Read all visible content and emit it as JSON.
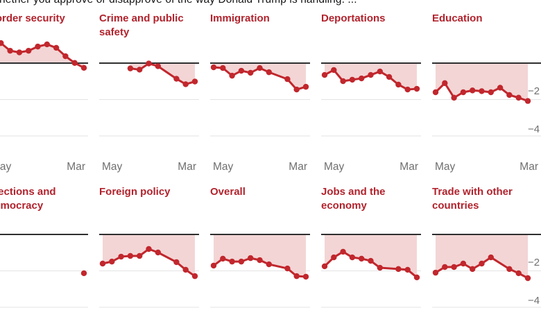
{
  "header": {
    "question_text": "hether you approve or disapprove of the way Donald Trump is handling. ..."
  },
  "colors": {
    "line_red": "#c1272d",
    "fill_pink": "#f3d5d5",
    "title_red": "#b1232d",
    "baseline_dark": "#2f2f2f",
    "gridline_gray": "#e3e3e3",
    "tick_text_gray": "#6f6f6f"
  },
  "chart_data": {
    "type": "line",
    "layout": "small-multiples-2x5",
    "question": "hether you approve or disapprove of the way Donald Trump is handling. ...",
    "x_tick_labels": [
      "May",
      "Mar"
    ],
    "y_tick_labels": [
      "−2",
      "−4"
    ],
    "y_gridline_values": [
      -20,
      -40
    ],
    "baseline_value": 0,
    "y_axis_note": "net approval, 0 baseline with -20 and -40 gridlines",
    "charts": [
      {
        "id": "border-security",
        "title": "Border security",
        "row": 0,
        "col": 0,
        "points": [
          [
            0,
            13
          ],
          [
            1,
            11
          ],
          [
            2,
            6.8
          ],
          [
            3,
            5.9
          ],
          [
            4,
            6.8
          ],
          [
            5,
            9.1
          ],
          [
            6,
            10.3
          ],
          [
            7,
            8.4
          ],
          [
            8,
            3.8
          ],
          [
            9,
            0.1
          ],
          [
            10,
            -2.6
          ]
        ]
      },
      {
        "id": "crime-and-public-safety",
        "title": "Crime and public safety",
        "row": 0,
        "col": 1,
        "points": [
          [
            3,
            -2.9
          ],
          [
            4,
            -3.6
          ],
          [
            5,
            -0.2
          ],
          [
            6,
            -1.7
          ],
          [
            8,
            -8.6
          ],
          [
            9,
            -11.6
          ],
          [
            10,
            -10.1
          ]
        ]
      },
      {
        "id": "immigration",
        "title": "Immigration",
        "row": 0,
        "col": 2,
        "points": [
          [
            0,
            -2.3
          ],
          [
            1,
            -2.7
          ],
          [
            2,
            -6.9
          ],
          [
            3,
            -4.2
          ],
          [
            4,
            -5.3
          ],
          [
            5,
            -2.7
          ],
          [
            6,
            -5
          ],
          [
            8,
            -8.8
          ],
          [
            9,
            -14.5
          ],
          [
            10,
            -13
          ]
        ]
      },
      {
        "id": "deportations",
        "title": "Deportations",
        "row": 0,
        "col": 3,
        "points": [
          [
            0,
            -6.5
          ],
          [
            1,
            -3.8
          ],
          [
            2,
            -9.9
          ],
          [
            3,
            -9.1
          ],
          [
            4,
            -8.4
          ],
          [
            5,
            -6.5
          ],
          [
            6,
            -4.6
          ],
          [
            7,
            -7.6
          ],
          [
            8,
            -11.8
          ],
          [
            9,
            -14.5
          ],
          [
            10,
            -14.1
          ]
        ]
      },
      {
        "id": "education",
        "title": "Education",
        "row": 0,
        "col": 4,
        "points": [
          [
            0,
            -16
          ],
          [
            1,
            -11
          ],
          [
            2,
            -19
          ],
          [
            3,
            -16
          ],
          [
            4,
            -15
          ],
          [
            5,
            -15.4
          ],
          [
            6,
            -16
          ],
          [
            7,
            -13.5
          ],
          [
            8,
            -17.5
          ],
          [
            9,
            -19
          ],
          [
            10,
            -20.8
          ]
        ]
      },
      {
        "id": "elections-and-democracy",
        "title": "Elections and democracy",
        "row": 1,
        "col": 0,
        "points": [
          [
            10,
            -21.3
          ]
        ]
      },
      {
        "id": "foreign-policy",
        "title": "Foreign policy",
        "row": 1,
        "col": 1,
        "points": [
          [
            0,
            -16
          ],
          [
            1,
            -14.9
          ],
          [
            2,
            -12.2
          ],
          [
            3,
            -11.8
          ],
          [
            4,
            -11.8
          ],
          [
            5,
            -8
          ],
          [
            6,
            -9.9
          ],
          [
            8,
            -15.2
          ],
          [
            9,
            -19.4
          ],
          [
            10,
            -22.9
          ]
        ]
      },
      {
        "id": "overall",
        "title": "Overall",
        "row": 1,
        "col": 2,
        "points": [
          [
            0,
            -17.1
          ],
          [
            1,
            -13.3
          ],
          [
            2,
            -14.9
          ],
          [
            3,
            -14.9
          ],
          [
            4,
            -13
          ],
          [
            5,
            -14.1
          ],
          [
            6,
            -16.4
          ],
          [
            8,
            -18.7
          ],
          [
            9,
            -22.9
          ],
          [
            10,
            -23.2
          ]
        ]
      },
      {
        "id": "jobs-and-the-economy",
        "title": "Jobs and the economy",
        "row": 1,
        "col": 3,
        "points": [
          [
            0,
            -17.5
          ],
          [
            1,
            -12.6
          ],
          [
            2,
            -9.5
          ],
          [
            3,
            -12.6
          ],
          [
            4,
            -13.3
          ],
          [
            5,
            -14.5
          ],
          [
            6,
            -18.3
          ],
          [
            8,
            -19
          ],
          [
            9,
            -19.4
          ],
          [
            10,
            -23.6
          ]
        ]
      },
      {
        "id": "trade-with-other-countries",
        "title": "Trade with other countries",
        "row": 1,
        "col": 4,
        "points": [
          [
            0,
            -21
          ],
          [
            1,
            -17.9
          ],
          [
            2,
            -17.9
          ],
          [
            3,
            -16
          ],
          [
            4,
            -19
          ],
          [
            5,
            -16
          ],
          [
            6,
            -12.6
          ],
          [
            8,
            -19
          ],
          [
            9,
            -21.3
          ],
          [
            10,
            -24
          ]
        ]
      }
    ]
  }
}
